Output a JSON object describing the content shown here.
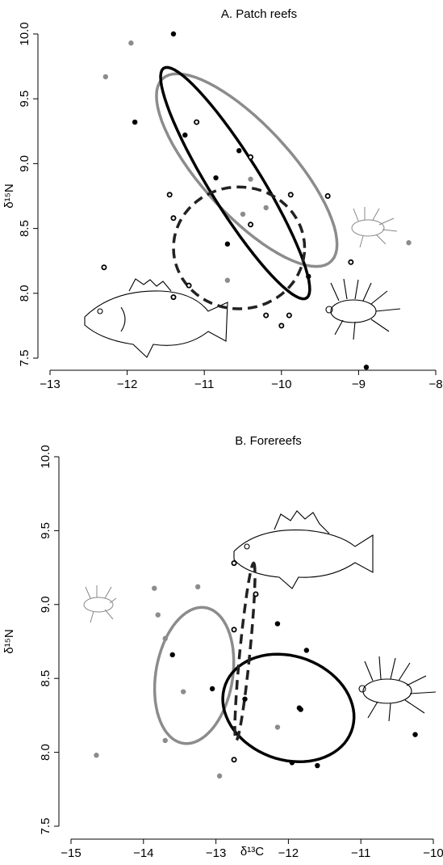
{
  "chart_data": [
    {
      "type": "scatter",
      "title": "A. Patch reefs",
      "y_label": "δ¹⁵N",
      "xlim": [
        -13,
        -8
      ],
      "ylim": [
        7.5,
        10.0
      ],
      "xticks": [
        {
          "value": -13,
          "label": "−13"
        },
        {
          "value": -12,
          "label": "−12"
        },
        {
          "value": -11,
          "label": "−11"
        },
        {
          "value": -10,
          "label": "−10"
        },
        {
          "value": -9,
          "label": "−9"
        },
        {
          "value": -8,
          "label": "−8"
        }
      ],
      "yticks": [
        7.5,
        {
          "value": 8.0,
          "label": "8.0"
        },
        8.5,
        {
          "value": 9.0,
          "label": "9.0"
        },
        9.5,
        {
          "value": 10.0,
          "label": "10.0"
        }
      ],
      "series": [
        {
          "color": "#8c8c8c",
          "marker": "filled",
          "x": [
            -11.95,
            -12.28,
            -10.4,
            -10.2,
            -10.5,
            -10.7,
            -8.35
          ],
          "y": [
            9.93,
            9.67,
            8.88,
            8.66,
            8.61,
            8.1,
            8.39
          ]
        },
        {
          "color": "#000000",
          "marker": "filled",
          "x": [
            -11.4,
            -11.9,
            -11.25,
            -10.55,
            -10.85,
            -10.7,
            -9.65,
            -8.9
          ],
          "y": [
            10.0,
            9.32,
            9.22,
            9.1,
            8.89,
            8.38,
            8.13,
            7.43
          ]
        },
        {
          "color": "#000000",
          "marker": "open",
          "x": [
            -12.3,
            -11.45,
            -11.4,
            -11.1,
            -10.4,
            -10.4,
            -9.88,
            -9.4,
            -9.1,
            -11.4,
            -11.2,
            -10.2,
            -10.0,
            -9.9
          ],
          "y": [
            8.2,
            8.76,
            8.58,
            9.32,
            9.05,
            8.53,
            8.76,
            8.75,
            8.24,
            7.97,
            8.06,
            7.83,
            7.75,
            7.83
          ]
        }
      ],
      "ellipses": [
        {
          "color": "#8c8c8c",
          "dashed": false,
          "center": [
            -10.45,
            8.95
          ],
          "u": [
            1.1,
            -0.7
          ],
          "v": [
            0.4,
            0.25
          ]
        },
        {
          "color": "#000000",
          "dashed": false,
          "center": [
            -10.6,
            8.85
          ],
          "u": [
            0.95,
            -0.87
          ],
          "v": [
            0.18,
            0.2
          ]
        },
        {
          "color": "#222222",
          "dashed": true,
          "center": [
            -10.55,
            8.35
          ],
          "u": [
            0.85,
            0
          ],
          "v": [
            0,
            0.47
          ]
        }
      ]
    },
    {
      "type": "scatter",
      "title": "B. Forereefs",
      "y_label": "δ¹⁵N",
      "x_label": "δ¹³C",
      "xlim": [
        -15,
        -10
      ],
      "ylim": [
        7.5,
        10.0
      ],
      "xticks": [
        {
          "value": -15,
          "label": "−15"
        },
        {
          "value": -14,
          "label": "−14"
        },
        {
          "value": -13,
          "label": "−13"
        },
        {
          "value": -12,
          "label": "−12"
        },
        {
          "value": -11,
          "label": "−11"
        },
        {
          "value": -10,
          "label": "−10"
        }
      ],
      "yticks": [
        7.5,
        {
          "value": 8.0,
          "label": "8.0"
        },
        8.5,
        {
          "value": 9.0,
          "label": "9.0"
        },
        9.5,
        {
          "value": 10.0,
          "label": "10.0"
        }
      ],
      "series": [
        {
          "color": "#8c8c8c",
          "marker": "filled",
          "x": [
            -14.65,
            -13.85,
            -13.8,
            -13.7,
            -13.25,
            -13.45,
            -13.7,
            -12.95,
            -12.15
          ],
          "y": [
            7.98,
            9.11,
            8.93,
            8.77,
            9.12,
            8.41,
            8.08,
            7.84,
            8.17
          ]
        },
        {
          "color": "#000000",
          "marker": "filled",
          "x": [
            -13.6,
            -13.05,
            -12.6,
            -12.15,
            -11.85,
            -11.83,
            -11.75,
            -11.95,
            -11.6,
            -10.25
          ],
          "y": [
            8.66,
            8.43,
            8.36,
            8.87,
            8.3,
            8.29,
            8.69,
            7.93,
            7.91,
            8.12
          ]
        },
        {
          "color": "#000000",
          "marker": "open",
          "x": [
            -12.75,
            -12.45,
            -12.75,
            -12.75
          ],
          "y": [
            9.28,
            9.07,
            8.83,
            7.95
          ]
        }
      ],
      "ellipses": [
        {
          "color": "#8c8c8c",
          "dashed": false,
          "center": [
            -13.3,
            8.52
          ],
          "u": [
            0.22,
            0.45
          ],
          "v": [
            0.5,
            -0.1
          ]
        },
        {
          "color": "#000000",
          "dashed": false,
          "center": [
            -12.0,
            8.3
          ],
          "u": [
            0.9,
            -0.1
          ],
          "v": [
            0.1,
            0.35
          ]
        },
        {
          "color": "#222222",
          "dashed": true,
          "center": [
            -12.6,
            8.68
          ],
          "u": [
            0.12,
            0.6
          ],
          "v": [
            0.07,
            0
          ]
        }
      ]
    }
  ]
}
